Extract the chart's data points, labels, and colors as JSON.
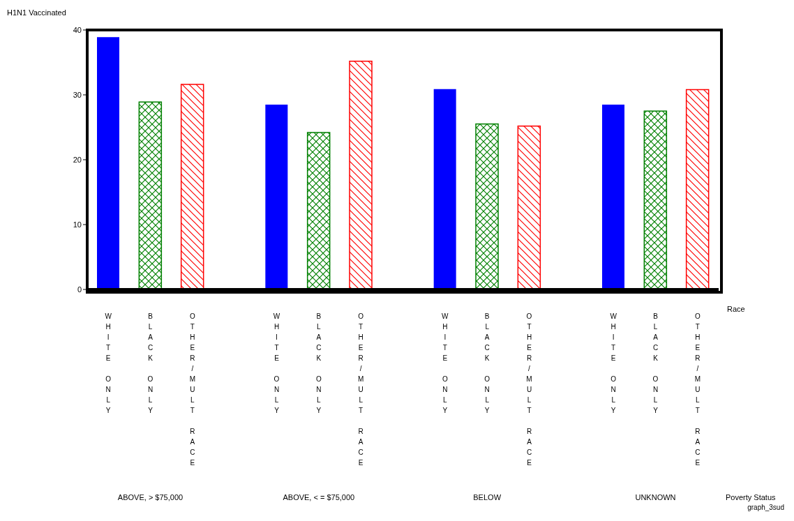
{
  "chart_data": {
    "type": "bar",
    "ylabel": "H1N1 Vaccinated",
    "categories": [
      "WHITE ONLY",
      "BLACK ONLY",
      "OTHER/MULT RACE",
      null,
      "WHITE ONLY",
      "BLACK ONLY",
      "OTHER/MULT RACE",
      null,
      "WHITE ONLY",
      "BLACK ONLY",
      "OTHER/MULT RACE",
      null,
      "WHITE ONLY",
      "BLACK ONLY",
      "OTHER/MULT RACE"
    ],
    "values": [
      38.9,
      28.9,
      31.6,
      null,
      28.5,
      24.2,
      35.2,
      null,
      30.9,
      25.5,
      25.2,
      null,
      28.5,
      27.5,
      30.8
    ],
    "colors": [
      "#0000ff",
      "#008000",
      "#ff0000",
      null,
      "#0000ff",
      "#008000",
      "#ff0000",
      null,
      "#0000ff",
      "#008000",
      "#ff0000",
      null,
      "#0000ff",
      "#008000",
      "#ff0000"
    ],
    "ylim": [
      0,
      40
    ],
    "yticks": [
      0,
      10,
      20,
      30,
      40
    ],
    "grid": false,
    "legend": false,
    "annotations": [
      "ABOVE, > $75,000",
      "ABOVE, < = $75,000",
      "BELOW",
      "UNKNOWN",
      "Race",
      "Poverty Status",
      "graph_3sud"
    ]
  }
}
